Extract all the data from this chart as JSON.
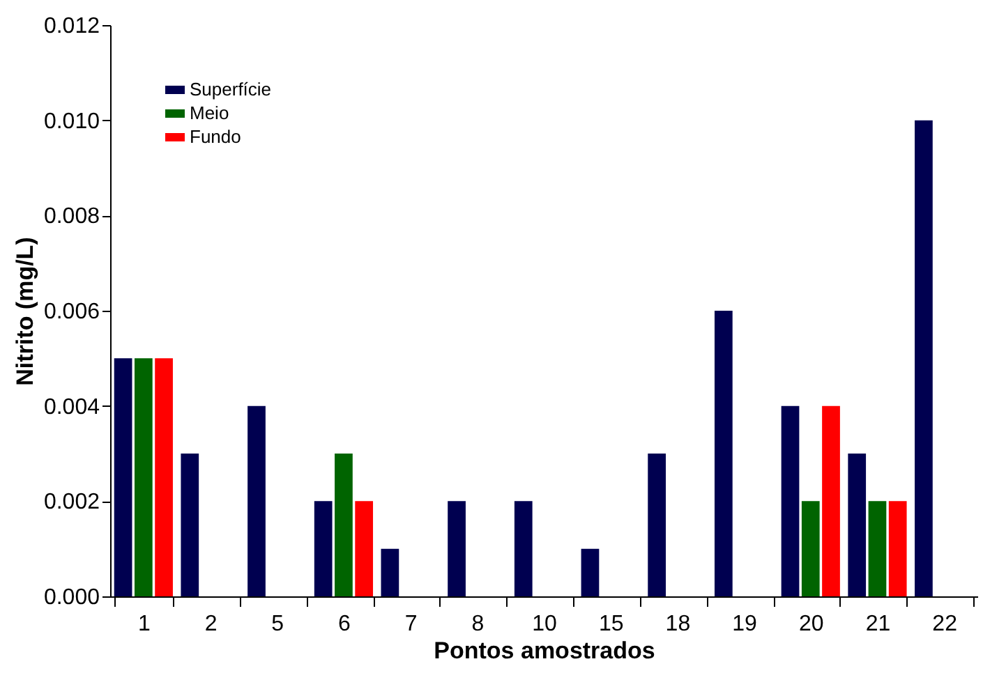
{
  "chart_data": {
    "type": "bar",
    "xlabel": "Pontos amostrados",
    "ylabel": "Nitrito (mg/L)",
    "categories": [
      "1",
      "2",
      "5",
      "6",
      "7",
      "8",
      "10",
      "15",
      "18",
      "19",
      "20",
      "21",
      "22"
    ],
    "series": [
      {
        "name": "Superfície",
        "color": "#000050",
        "values": [
          0.005,
          0.003,
          0.004,
          0.002,
          0.001,
          0.002,
          0.002,
          0.001,
          0.003,
          0.006,
          0.004,
          0.003,
          0.01
        ]
      },
      {
        "name": "Meio",
        "color": "#006400",
        "values": [
          0.005,
          null,
          null,
          0.003,
          null,
          null,
          null,
          null,
          null,
          null,
          0.002,
          0.002,
          null
        ]
      },
      {
        "name": "Fundo",
        "color": "#ff0000",
        "values": [
          0.005,
          null,
          null,
          0.002,
          null,
          null,
          null,
          null,
          null,
          null,
          0.004,
          0.002,
          null
        ]
      }
    ],
    "ylim": [
      0,
      0.012
    ],
    "yticks": [
      {
        "value": 0,
        "label": "0.000"
      },
      {
        "value": 0.002,
        "label": "0.002"
      },
      {
        "value": 0.004,
        "label": "0.004"
      },
      {
        "value": 0.006,
        "label": "0.006"
      },
      {
        "value": 0.008,
        "label": "0.008"
      },
      {
        "value": 0.01,
        "label": "0.010"
      },
      {
        "value": 0.012,
        "label": "0.012"
      }
    ],
    "grid": false,
    "legend": "top left"
  }
}
